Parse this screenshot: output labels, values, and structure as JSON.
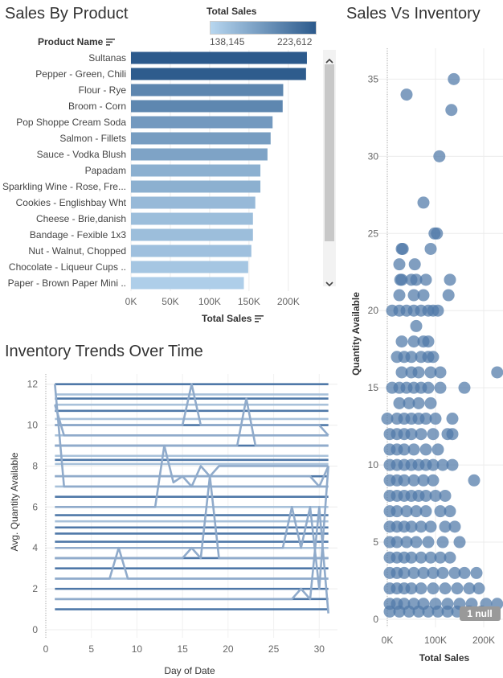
{
  "sales_by_product": {
    "title": "Sales By Product",
    "column_header": "Product Name",
    "legend": {
      "title": "Total Sales",
      "min_label": "138,145",
      "max_label": "223,612",
      "min": 138145,
      "max": 223612,
      "color_low": "#b7d6ef",
      "color_high": "#2c5a8c"
    },
    "x_axis_title": "Total Sales"
  },
  "sales_vs_inventory": {
    "title": "Sales Vs Inventory",
    "y_axis_title": "Quantity Available",
    "x_axis_title": "Total Sales",
    "null_badge": "1 null"
  },
  "inventory_trends": {
    "title": "Inventory Trends Over Time",
    "y_axis_title": "Avg. Quantity Available",
    "x_axis_title": "Day of Date"
  },
  "chart_data": [
    {
      "type": "bar",
      "orientation": "horizontal",
      "categories": [
        "Sultanas",
        "Pepper - Green, Chili",
        "Flour - Rye",
        "Broom - Corn",
        "Pop Shoppe Cream Soda",
        "Salmon - Fillets",
        "Sauce - Vodka Blush",
        "Papadam",
        "Sparkling Wine - Rose, Fre...",
        "Cookies - Englishbay Wht",
        "Cheese - Brie,danish",
        "Bandage - Fexible 1x3",
        "Nut - Walnut, Chopped",
        "Chocolate - Liqueur Cups ..",
        "Paper - Brown Paper Mini .."
      ],
      "values": [
        223612,
        222500,
        193500,
        192800,
        180000,
        177500,
        173500,
        164500,
        164500,
        158000,
        155000,
        155000,
        153000,
        149000,
        143500
      ],
      "xlim": [
        0,
        240000
      ],
      "xticks": [
        0,
        50000,
        100000,
        150000,
        200000
      ],
      "xtick_labels": [
        "0K",
        "50K",
        "100K",
        "150K",
        "200K"
      ],
      "color_scale": {
        "min": 138145,
        "max": 223612,
        "low": "#b7d6ef",
        "high": "#2c5a8c"
      }
    },
    {
      "type": "scatter",
      "xlim": [
        -20000,
        240000
      ],
      "ylim": [
        0,
        37
      ],
      "xticks": [
        0,
        100000,
        200000
      ],
      "xtick_labels": [
        "0K",
        "100K",
        "200K"
      ],
      "yticks": [
        0,
        5,
        10,
        15,
        20,
        25,
        30,
        35
      ],
      "color": "#4f78a8",
      "points": [
        [
          138000,
          35
        ],
        [
          40000,
          34
        ],
        [
          133000,
          33
        ],
        [
          108000,
          30
        ],
        [
          75000,
          27
        ],
        [
          98000,
          25
        ],
        [
          103000,
          25
        ],
        [
          90000,
          24
        ],
        [
          30000,
          24
        ],
        [
          32000,
          24
        ],
        [
          25000,
          23
        ],
        [
          57000,
          23
        ],
        [
          130000,
          22
        ],
        [
          27000,
          22
        ],
        [
          30000,
          22
        ],
        [
          50000,
          22
        ],
        [
          60000,
          22
        ],
        [
          80000,
          22
        ],
        [
          127000,
          21
        ],
        [
          25000,
          21
        ],
        [
          55000,
          21
        ],
        [
          75000,
          21
        ],
        [
          10000,
          20
        ],
        [
          25000,
          20
        ],
        [
          40000,
          20
        ],
        [
          55000,
          20
        ],
        [
          70000,
          20
        ],
        [
          85000,
          20
        ],
        [
          95000,
          20
        ],
        [
          105000,
          20
        ],
        [
          60000,
          19
        ],
        [
          30000,
          18
        ],
        [
          55000,
          18
        ],
        [
          75000,
          18
        ],
        [
          85000,
          18
        ],
        [
          20000,
          17
        ],
        [
          35000,
          17
        ],
        [
          50000,
          17
        ],
        [
          70000,
          17
        ],
        [
          85000,
          17
        ],
        [
          95000,
          17
        ],
        [
          30000,
          16
        ],
        [
          50000,
          16
        ],
        [
          65000,
          16
        ],
        [
          90000,
          16
        ],
        [
          110000,
          16
        ],
        [
          228000,
          16
        ],
        [
          10000,
          15
        ],
        [
          25000,
          15
        ],
        [
          40000,
          15
        ],
        [
          55000,
          15
        ],
        [
          70000,
          15
        ],
        [
          85000,
          15
        ],
        [
          110000,
          15
        ],
        [
          160000,
          15
        ],
        [
          25000,
          14
        ],
        [
          45000,
          14
        ],
        [
          65000,
          14
        ],
        [
          90000,
          14
        ],
        [
          0,
          13
        ],
        [
          20000,
          13
        ],
        [
          35000,
          13
        ],
        [
          50000,
          13
        ],
        [
          65000,
          13
        ],
        [
          80000,
          13
        ],
        [
          100000,
          13
        ],
        [
          135000,
          13
        ],
        [
          5000,
          12
        ],
        [
          20000,
          12
        ],
        [
          35000,
          12
        ],
        [
          50000,
          12
        ],
        [
          70000,
          12
        ],
        [
          95000,
          12
        ],
        [
          125000,
          12
        ],
        [
          135000,
          12
        ],
        [
          5000,
          11
        ],
        [
          20000,
          11
        ],
        [
          35000,
          11
        ],
        [
          55000,
          11
        ],
        [
          80000,
          11
        ],
        [
          105000,
          11
        ],
        [
          5000,
          10
        ],
        [
          20000,
          10
        ],
        [
          35000,
          10
        ],
        [
          50000,
          10
        ],
        [
          65000,
          10
        ],
        [
          80000,
          10
        ],
        [
          95000,
          10
        ],
        [
          115000,
          10
        ],
        [
          135000,
          10
        ],
        [
          5000,
          9
        ],
        [
          20000,
          9
        ],
        [
          35000,
          9
        ],
        [
          55000,
          9
        ],
        [
          75000,
          9
        ],
        [
          95000,
          9
        ],
        [
          180000,
          9
        ],
        [
          5000,
          8
        ],
        [
          20000,
          8
        ],
        [
          35000,
          8
        ],
        [
          50000,
          8
        ],
        [
          65000,
          8
        ],
        [
          80000,
          8
        ],
        [
          100000,
          8
        ],
        [
          120000,
          8
        ],
        [
          5000,
          7
        ],
        [
          20000,
          7
        ],
        [
          40000,
          7
        ],
        [
          60000,
          7
        ],
        [
          80000,
          7
        ],
        [
          110000,
          7
        ],
        [
          130000,
          7
        ],
        [
          5000,
          6
        ],
        [
          20000,
          6
        ],
        [
          35000,
          6
        ],
        [
          50000,
          6
        ],
        [
          70000,
          6
        ],
        [
          90000,
          6
        ],
        [
          120000,
          6
        ],
        [
          140000,
          6
        ],
        [
          5000,
          5
        ],
        [
          20000,
          5
        ],
        [
          40000,
          5
        ],
        [
          60000,
          5
        ],
        [
          85000,
          5
        ],
        [
          115000,
          5
        ],
        [
          150000,
          5
        ],
        [
          5000,
          4
        ],
        [
          20000,
          4
        ],
        [
          35000,
          4
        ],
        [
          50000,
          4
        ],
        [
          70000,
          4
        ],
        [
          90000,
          4
        ],
        [
          110000,
          4
        ],
        [
          130000,
          4
        ],
        [
          5000,
          3
        ],
        [
          20000,
          3
        ],
        [
          35000,
          3
        ],
        [
          55000,
          3
        ],
        [
          75000,
          3
        ],
        [
          95000,
          3
        ],
        [
          115000,
          3
        ],
        [
          140000,
          3
        ],
        [
          160000,
          3
        ],
        [
          185000,
          3
        ],
        [
          5000,
          2
        ],
        [
          20000,
          2
        ],
        [
          35000,
          2
        ],
        [
          50000,
          2
        ],
        [
          70000,
          2
        ],
        [
          95000,
          2
        ],
        [
          120000,
          2
        ],
        [
          145000,
          2
        ],
        [
          170000,
          2
        ],
        [
          190000,
          2
        ],
        [
          5000,
          1
        ],
        [
          20000,
          1
        ],
        [
          35000,
          1
        ],
        [
          55000,
          1
        ],
        [
          75000,
          1
        ],
        [
          100000,
          1
        ],
        [
          125000,
          1
        ],
        [
          150000,
          1
        ],
        [
          175000,
          1
        ],
        [
          205000,
          1
        ],
        [
          228000,
          1
        ],
        [
          5000,
          0.5
        ],
        [
          25000,
          0.5
        ],
        [
          45000,
          0.5
        ],
        [
          65000,
          0.5
        ],
        [
          85000,
          0.5
        ],
        [
          105000,
          0.5
        ],
        [
          125000,
          0.5
        ],
        [
          145000,
          0.5
        ],
        [
          170000,
          0.5
        ],
        [
          195000,
          0.5
        ]
      ]
    },
    {
      "type": "line",
      "xlim": [
        0,
        32
      ],
      "ylim": [
        0,
        12.5
      ],
      "xticks": [
        0,
        5,
        10,
        15,
        20,
        25,
        30
      ],
      "yticks": [
        0,
        2,
        4,
        6,
        8,
        10,
        12
      ],
      "flat_series": [
        {
          "value": 12,
          "light": false
        },
        {
          "value": 11.5,
          "light": true
        },
        {
          "value": 11.3,
          "light": false
        },
        {
          "value": 11.0,
          "light": true
        },
        {
          "value": 10.7,
          "light": false
        },
        {
          "value": 10.3,
          "light": true
        },
        {
          "value": 10.0,
          "light": false
        },
        {
          "value": 9.5,
          "light": true
        },
        {
          "value": 9.0,
          "light": false
        },
        {
          "value": 8.5,
          "light": true
        },
        {
          "value": 8.3,
          "light": false
        },
        {
          "value": 8.1,
          "light": true
        },
        {
          "value": 7.5,
          "light": false
        },
        {
          "value": 7.0,
          "light": true
        },
        {
          "value": 6.5,
          "light": false
        },
        {
          "value": 6.0,
          "light": true
        },
        {
          "value": 5.6,
          "light": false
        },
        {
          "value": 5.3,
          "light": true
        },
        {
          "value": 5.0,
          "light": false
        },
        {
          "value": 4.7,
          "light": false
        },
        {
          "value": 4.3,
          "light": false
        },
        {
          "value": 4.0,
          "light": true
        },
        {
          "value": 3.5,
          "light": false
        },
        {
          "value": 3.0,
          "light": false
        },
        {
          "value": 2.5,
          "light": true
        },
        {
          "value": 2.0,
          "light": false
        },
        {
          "value": 1.5,
          "light": false
        },
        {
          "value": 1.0,
          "light": false
        }
      ],
      "varying_series": [
        {
          "x": [
            1,
            2,
            31
          ],
          "y": [
            12,
            7,
            7
          ]
        },
        {
          "x": [
            1,
            2,
            31
          ],
          "y": [
            11,
            9.5,
            9.5
          ]
        },
        {
          "x": [
            1,
            15,
            16,
            17,
            30,
            31
          ],
          "y": [
            10,
            10,
            12,
            10,
            10,
            9.5
          ]
        },
        {
          "x": [
            1,
            21,
            22,
            23,
            31
          ],
          "y": [
            9,
            9,
            11.3,
            9,
            9
          ]
        },
        {
          "x": [
            1,
            12,
            13,
            14,
            15,
            16,
            17,
            18,
            19,
            31
          ],
          "y": [
            6,
            6,
            9,
            7.2,
            7.5,
            7,
            8,
            7.5,
            8,
            8
          ]
        },
        {
          "x": [
            1,
            7,
            8,
            9,
            31
          ],
          "y": [
            2.5,
            2.5,
            4,
            2.5,
            2.5
          ]
        },
        {
          "x": [
            1,
            15,
            16,
            17,
            18,
            19,
            31
          ],
          "y": [
            3.5,
            3.5,
            4,
            3.5,
            7.5,
            3.5,
            3.5
          ]
        },
        {
          "x": [
            1,
            26,
            27,
            28,
            29,
            30,
            31
          ],
          "y": [
            4,
            4,
            6,
            4,
            6,
            2,
            8
          ]
        },
        {
          "x": [
            1,
            27,
            28,
            29,
            30,
            31
          ],
          "y": [
            1.5,
            1.5,
            2,
            1.5,
            6,
            0.8
          ]
        },
        {
          "x": [
            1,
            29,
            30,
            31
          ],
          "y": [
            7.5,
            7.5,
            7,
            8
          ]
        }
      ]
    }
  ]
}
